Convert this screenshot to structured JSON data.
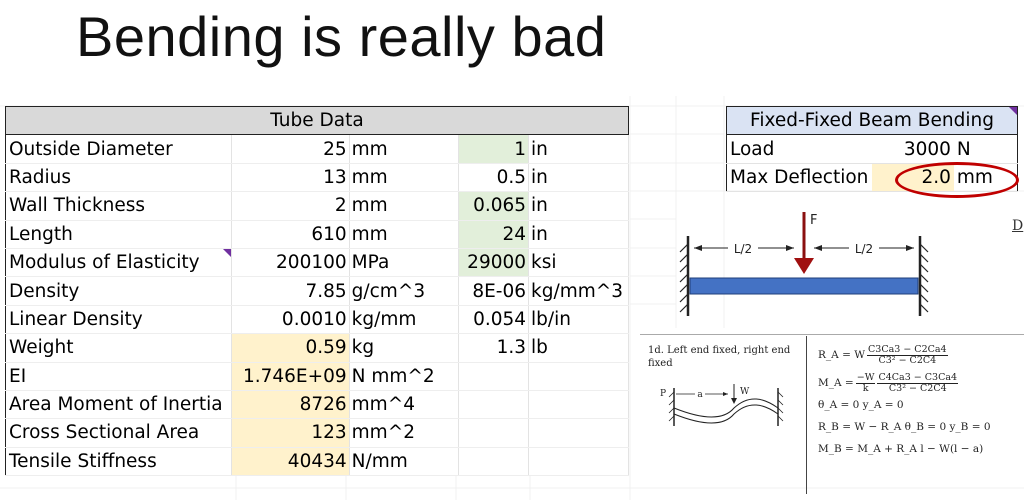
{
  "title": "Bending is really bad",
  "tube": {
    "header": "Tube Data",
    "rows": [
      {
        "label": "Outside Diameter",
        "v1": "25",
        "u1": "mm",
        "v2": "1",
        "u2": "in"
      },
      {
        "label": "Radius",
        "v1": "13",
        "u1": "mm",
        "v2": "0.5",
        "u2": "in"
      },
      {
        "label": "Wall Thickness",
        "v1": "2",
        "u1": "mm",
        "v2": "0.065",
        "u2": "in"
      },
      {
        "label": "Length",
        "v1": "610",
        "u1": "mm",
        "v2": "24",
        "u2": "in"
      },
      {
        "label": "Modulus of Elasticity",
        "v1": "200100",
        "u1": "MPa",
        "v2": "29000",
        "u2": "ksi"
      },
      {
        "label": "Density",
        "v1": "7.85",
        "u1": "g/cm^3",
        "v2": "8E-06",
        "u2": "kg/mm^3"
      },
      {
        "label": "Linear Density",
        "v1": "0.0010",
        "u1": "kg/mm",
        "v2": "0.054",
        "u2": "lb/in"
      },
      {
        "label": "Weight",
        "v1": "0.59",
        "u1": "kg",
        "v2": "1.3",
        "u2": "lb"
      },
      {
        "label": "EI",
        "v1": "1.746E+09",
        "u1": "N mm^2",
        "v2": "",
        "u2": ""
      },
      {
        "label": "Area Moment of Inertia",
        "v1": "8726",
        "u1": "mm^4",
        "v2": "",
        "u2": ""
      },
      {
        "label": "Cross Sectional Area",
        "v1": "123",
        "u1": "mm^2",
        "v2": "",
        "u2": ""
      },
      {
        "label": "Tensile Stiffness",
        "v1": "40434",
        "u1": "N/mm",
        "v2": "",
        "u2": ""
      }
    ]
  },
  "beam": {
    "header": "Fixed-Fixed Beam Bending",
    "load_label": "Load",
    "load_value": "3000",
    "load_unit": "N",
    "defl_label": "Max Deflection",
    "defl_value": "2.0",
    "defl_unit": "mm"
  },
  "figure": {
    "force": "F",
    "half1": "L/2",
    "half2": "L/2",
    "edge_letter": "D"
  },
  "formula": {
    "case_title": "1d. Left end fixed, right end fixed",
    "p": "P",
    "a": "a",
    "w": "W",
    "ra_lhs": "R_A = W",
    "ra_num": "C3Ca3 − C2Ca4",
    "ra_den": "C3² − C2C4",
    "ma_lhs": "M_A =",
    "ma_n1": "−W",
    "ma_d1": "k",
    "ma_num": "C4Ca3 − C3Ca4",
    "ma_den": "C3² − C2C4",
    "theta": "θ_A = 0     y_A = 0",
    "rb": "R_B = W − R_A     θ_B = 0     y_B = 0",
    "mb": "M_B = M_A + R_A l − W(l − a)"
  },
  "colors": {
    "green": "#e2efda",
    "tan": "#fff2cc",
    "header": "#d9d9d9",
    "beam_header": "#dae3f3",
    "highlight": "#c00000"
  }
}
